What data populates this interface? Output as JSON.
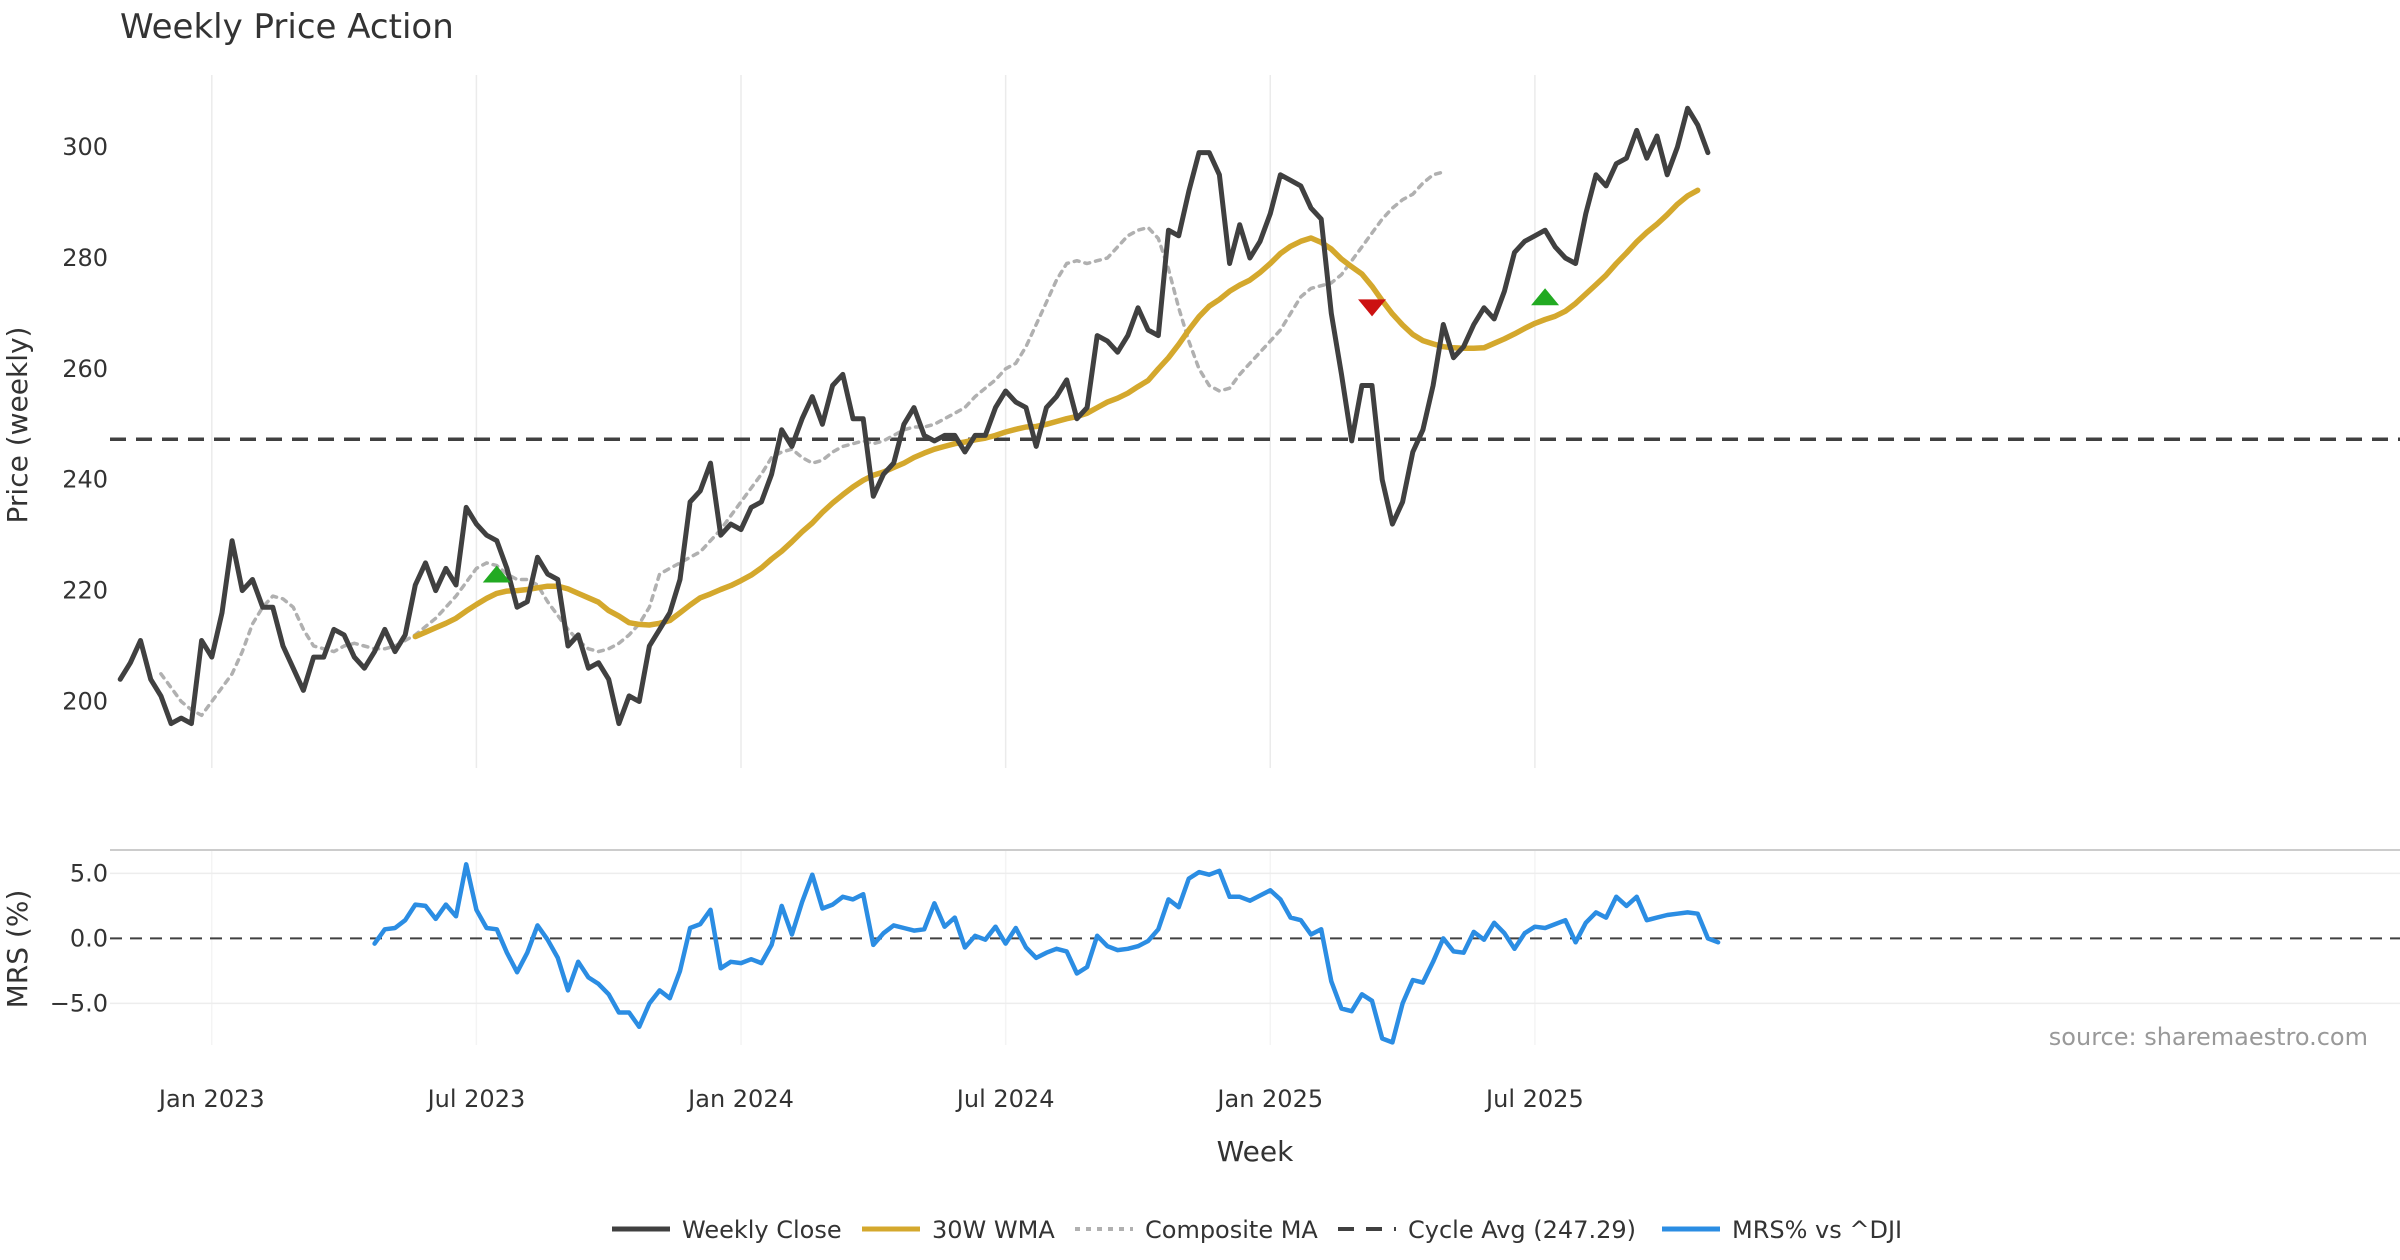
{
  "chart_data": [
    {
      "type": "line",
      "title": "Weekly Price Action",
      "ylabel": "Price (weekly)",
      "xlabel": "Week",
      "ylim": [
        188,
        313
      ],
      "yticks": [
        200,
        220,
        240,
        260,
        280,
        300
      ],
      "xlim": [
        -9,
        216
      ],
      "xticks": [
        {
          "label": "Jan 2023",
          "x": 1
        },
        {
          "label": "Jul 2023",
          "x": 27
        },
        {
          "label": "Jan 2024",
          "x": 53
        },
        {
          "label": "Jul 2024",
          "x": 79
        },
        {
          "label": "Jan 2025",
          "x": 105
        },
        {
          "label": "Jul 2025",
          "x": 131
        }
      ],
      "grid": true,
      "cycle_avg": 247.29,
      "series": [
        {
          "name": "Weekly Close",
          "color": "#404040",
          "start": -8,
          "values": [
            204,
            207,
            211,
            204,
            201,
            196,
            197,
            196,
            211,
            208,
            216,
            229,
            220,
            222,
            217,
            217,
            210,
            206,
            202,
            208,
            208,
            213,
            212,
            208,
            206,
            209,
            213,
            209,
            212,
            221,
            225,
            220,
            224,
            221,
            235,
            232,
            230,
            229,
            224,
            217,
            218,
            226,
            223,
            222,
            210,
            212,
            206,
            207,
            204,
            196,
            201,
            200,
            210,
            213,
            216,
            222,
            236,
            238,
            243,
            230,
            232,
            231,
            235,
            236,
            241,
            249,
            246,
            251,
            255,
            250,
            257,
            259,
            251,
            251,
            237,
            241,
            243,
            250,
            253,
            248,
            247,
            248,
            248,
            245,
            248,
            248,
            253,
            256,
            254,
            253,
            246,
            253,
            255,
            258,
            251,
            253,
            266,
            265,
            263,
            266,
            271,
            267,
            266,
            285,
            284,
            292,
            299,
            299,
            295,
            279,
            286,
            280,
            283,
            288,
            295,
            294,
            293,
            289,
            287,
            270,
            259,
            247,
            257,
            257,
            240,
            232,
            236,
            245,
            249,
            257,
            268,
            262,
            264,
            268,
            271,
            269,
            274,
            281,
            283,
            284,
            285,
            282,
            280,
            279,
            288,
            295,
            293,
            297,
            298,
            303,
            298,
            302,
            295,
            300,
            307,
            304,
            299
          ]
        },
        {
          "name": "30W WMA",
          "color": "#d4a82d",
          "start": 21,
          "values": [
            211.7,
            212.5,
            213.3,
            214.1,
            215.0,
            216.3,
            217.5,
            218.6,
            219.5,
            219.9,
            220.0,
            220.2,
            220.5,
            220.8,
            220.8,
            220.3,
            219.5,
            218.7,
            217.9,
            216.4,
            215.4,
            214.2,
            213.9,
            213.8,
            214.1,
            214.6,
            216.0,
            217.4,
            218.7,
            219.4,
            220.2,
            220.9,
            221.8,
            222.8,
            224.1,
            225.7,
            227.1,
            228.8,
            230.6,
            232.2,
            234.1,
            235.8,
            237.3,
            238.7,
            239.9,
            240.8,
            241.4,
            242.2,
            243.0,
            244.0,
            244.8,
            245.5,
            246.0,
            246.5,
            246.8,
            247.2,
            247.5,
            248.0,
            248.6,
            249.1,
            249.5,
            249.6,
            250.0,
            250.5,
            251.0,
            251.4,
            252.0,
            253.0,
            254.0,
            254.7,
            255.6,
            256.8,
            257.9,
            260.0,
            262.0,
            264.4,
            267.0,
            269.4,
            271.3,
            272.5,
            274.0,
            275.1,
            276.0,
            277.4,
            279.0,
            280.8,
            282.1,
            283.0,
            283.6,
            282.8,
            281.6,
            279.8,
            278.4,
            277.1,
            274.9,
            272.3,
            269.9,
            267.9,
            266.2,
            265.1,
            264.5,
            264.0,
            263.8,
            263.7,
            263.7,
            263.8,
            264.6,
            265.4,
            266.3,
            267.3,
            268.2,
            268.9,
            269.5,
            270.4,
            271.8,
            273.5,
            275.2,
            276.9,
            279.0,
            280.9,
            282.9,
            284.6,
            286.1,
            287.8,
            289.7,
            291.2,
            292.2
          ]
        },
        {
          "name": "Composite MA",
          "color": "#b0b0b0",
          "start": -4,
          "values": [
            205.0,
            202.5,
            200.0,
            198.5,
            197.5,
            200.0,
            202.5,
            205.0,
            209.0,
            214.0,
            217.0,
            219.0,
            218.5,
            217.0,
            213.0,
            210.0,
            209.5,
            209.0,
            210.0,
            210.5,
            210.0,
            209.5,
            209.5,
            210.0,
            211.0,
            212.0,
            213.5,
            215.0,
            217.0,
            219.0,
            221.5,
            224.0,
            225.0,
            224.5,
            223.0,
            222.0,
            222.0,
            221.0,
            218.0,
            215.5,
            213.0,
            211.0,
            209.5,
            209.0,
            209.5,
            210.5,
            212.0,
            214.0,
            217.0,
            223.0,
            224.0,
            225.0,
            226.0,
            227.0,
            229.0,
            231.0,
            233.5,
            236.0,
            238.5,
            241.0,
            244.0,
            245.0,
            245.5,
            244.0,
            243.0,
            243.5,
            245.0,
            246.0,
            246.5,
            247.0,
            246.5,
            247.0,
            248.0,
            249.0,
            249.5,
            249.5,
            250.0,
            251.0,
            252.0,
            253.0,
            255.0,
            256.5,
            258.0,
            260.0,
            261.0,
            264.0,
            268.0,
            272.0,
            276.0,
            279.0,
            279.5,
            279.0,
            279.5,
            280.0,
            282.0,
            284.0,
            285.0,
            285.5,
            283.5,
            278.0,
            271.0,
            265.0,
            260.0,
            257.0,
            256.0,
            256.5,
            259.0,
            261.0,
            263.0,
            265.0,
            267.0,
            270.0,
            273.0,
            274.5,
            275.0,
            275.5,
            277.0,
            279.5,
            282.0,
            284.5,
            287.0,
            289.0,
            290.5,
            291.5,
            293.5,
            295.0,
            295.5
          ]
        }
      ],
      "signals": [
        {
          "type": "buy",
          "x": 29,
          "y": 223,
          "color": "#22aa22"
        },
        {
          "type": "sell",
          "x": 115,
          "y": 271,
          "color": "#cc1111"
        },
        {
          "type": "buy",
          "x": 132,
          "y": 273,
          "color": "#22aa22"
        }
      ]
    },
    {
      "type": "line",
      "ylabel": "MRS (%)",
      "ylim": [
        -8.2,
        6.8
      ],
      "yticks": [
        {
          "value": -5,
          "label": "−5.0"
        },
        {
          "value": 0,
          "label": "0.0"
        },
        {
          "value": 5,
          "label": "5.0"
        }
      ],
      "series": [
        {
          "name": "MRS% vs ^DJI",
          "color": "#2b8de3",
          "start": 17,
          "values": [
            -0.4,
            0.7,
            0.8,
            1.4,
            2.6,
            2.5,
            1.5,
            2.6,
            1.7,
            5.7,
            2.2,
            0.8,
            0.7,
            -1.1,
            -2.6,
            -1.1,
            1.0,
            -0.1,
            -1.5,
            -4.0,
            -1.8,
            -3.0,
            -3.5,
            -4.3,
            -5.7,
            -5.7,
            -6.8,
            -5.0,
            -4.0,
            -4.6,
            -2.5,
            0.8,
            1.1,
            2.2,
            -2.3,
            -1.8,
            -1.9,
            -1.6,
            -1.9,
            -0.5,
            2.5,
            0.3,
            2.8,
            4.9,
            2.3,
            2.6,
            3.2,
            3.0,
            3.4,
            -0.5,
            0.4,
            1.0,
            0.8,
            0.6,
            0.7,
            2.7,
            0.9,
            1.6,
            -0.7,
            0.2,
            -0.1,
            0.9,
            -0.4,
            0.8,
            -0.7,
            -1.5,
            -1.1,
            -0.8,
            -1.0,
            -2.7,
            -2.2,
            0.2,
            -0.6,
            -0.9,
            -0.8,
            -0.6,
            -0.2,
            0.7,
            3.0,
            2.4,
            4.6,
            5.1,
            4.9,
            5.2,
            3.2,
            3.2,
            2.9,
            3.3,
            3.7,
            3.0,
            1.6,
            1.4,
            0.3,
            0.7,
            -3.3,
            -5.4,
            -5.6,
            -4.3,
            -4.8,
            -7.7,
            -8.0,
            -5.0,
            -3.2,
            -3.4,
            -1.8,
            0.0,
            -1.0,
            -1.1,
            0.5,
            -0.1,
            1.2,
            0.4,
            -0.8,
            0.4,
            0.9,
            0.8,
            1.1,
            1.4,
            -0.3,
            1.2,
            2.0,
            1.6,
            3.2,
            2.5,
            3.2,
            1.4,
            1.6,
            1.8,
            1.9,
            2.0,
            1.9,
            0.0,
            -0.3
          ]
        }
      ],
      "reference_line": 0
    }
  ],
  "legend": [
    {
      "label": "Weekly Close",
      "style": "solid",
      "color": "#404040"
    },
    {
      "label": "30W WMA",
      "style": "solid",
      "color": "#d4a82d"
    },
    {
      "label": "Composite MA",
      "style": "dotted",
      "color": "#b0b0b0"
    },
    {
      "label": "Cycle Avg (247.29)",
      "style": "dashed",
      "color": "#404040"
    },
    {
      "label": "MRS% vs ^DJI",
      "style": "solid",
      "color": "#2b8de3"
    }
  ],
  "source": "source: sharemaestro.com"
}
